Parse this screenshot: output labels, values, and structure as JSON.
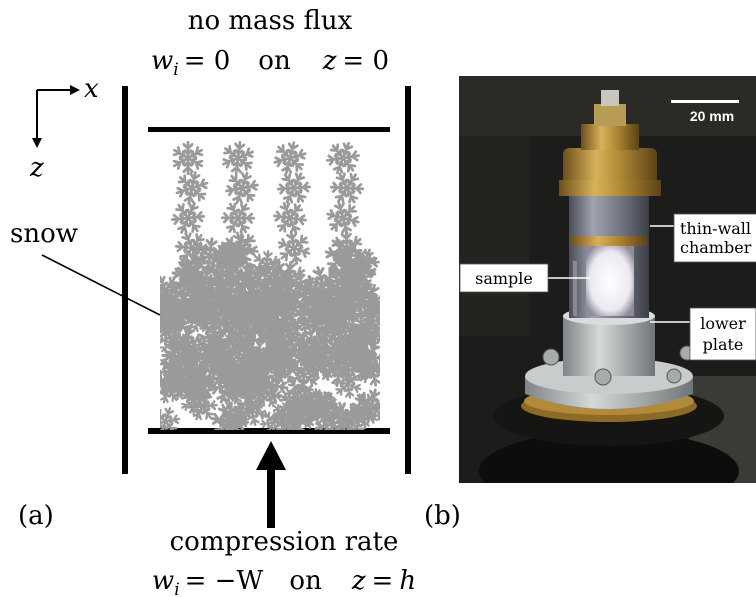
{
  "panel_a": {
    "top_label": "no mass flux",
    "top_condition": {
      "var": "w",
      "sub": "i",
      "eq": "= 0",
      "on": "on",
      "coord": "z",
      "value": "= 0"
    },
    "axis_x": "x",
    "axis_z": "z",
    "snow_label": "snow",
    "panel_label": "(a)",
    "bottom_label": "compression rate",
    "bottom_condition": {
      "var": "w",
      "sub": "i",
      "eq": "= −W",
      "on": "on",
      "coord": "z",
      "eq2": "=",
      "value": "h"
    }
  },
  "panel_b": {
    "panel_label": "(b)",
    "scale_bar": "20 mm",
    "labels": {
      "chamber_line1": "thin-wall",
      "chamber_line2": "chamber",
      "sample": "sample",
      "lower_line1": "lower",
      "lower_line2": "plate"
    }
  },
  "colors": {
    "snow": "#9a9a9a",
    "walls": "#000000",
    "photo_background": "#1c1c1a",
    "brass": "#b8913a",
    "plate": "#b9bcbd"
  }
}
